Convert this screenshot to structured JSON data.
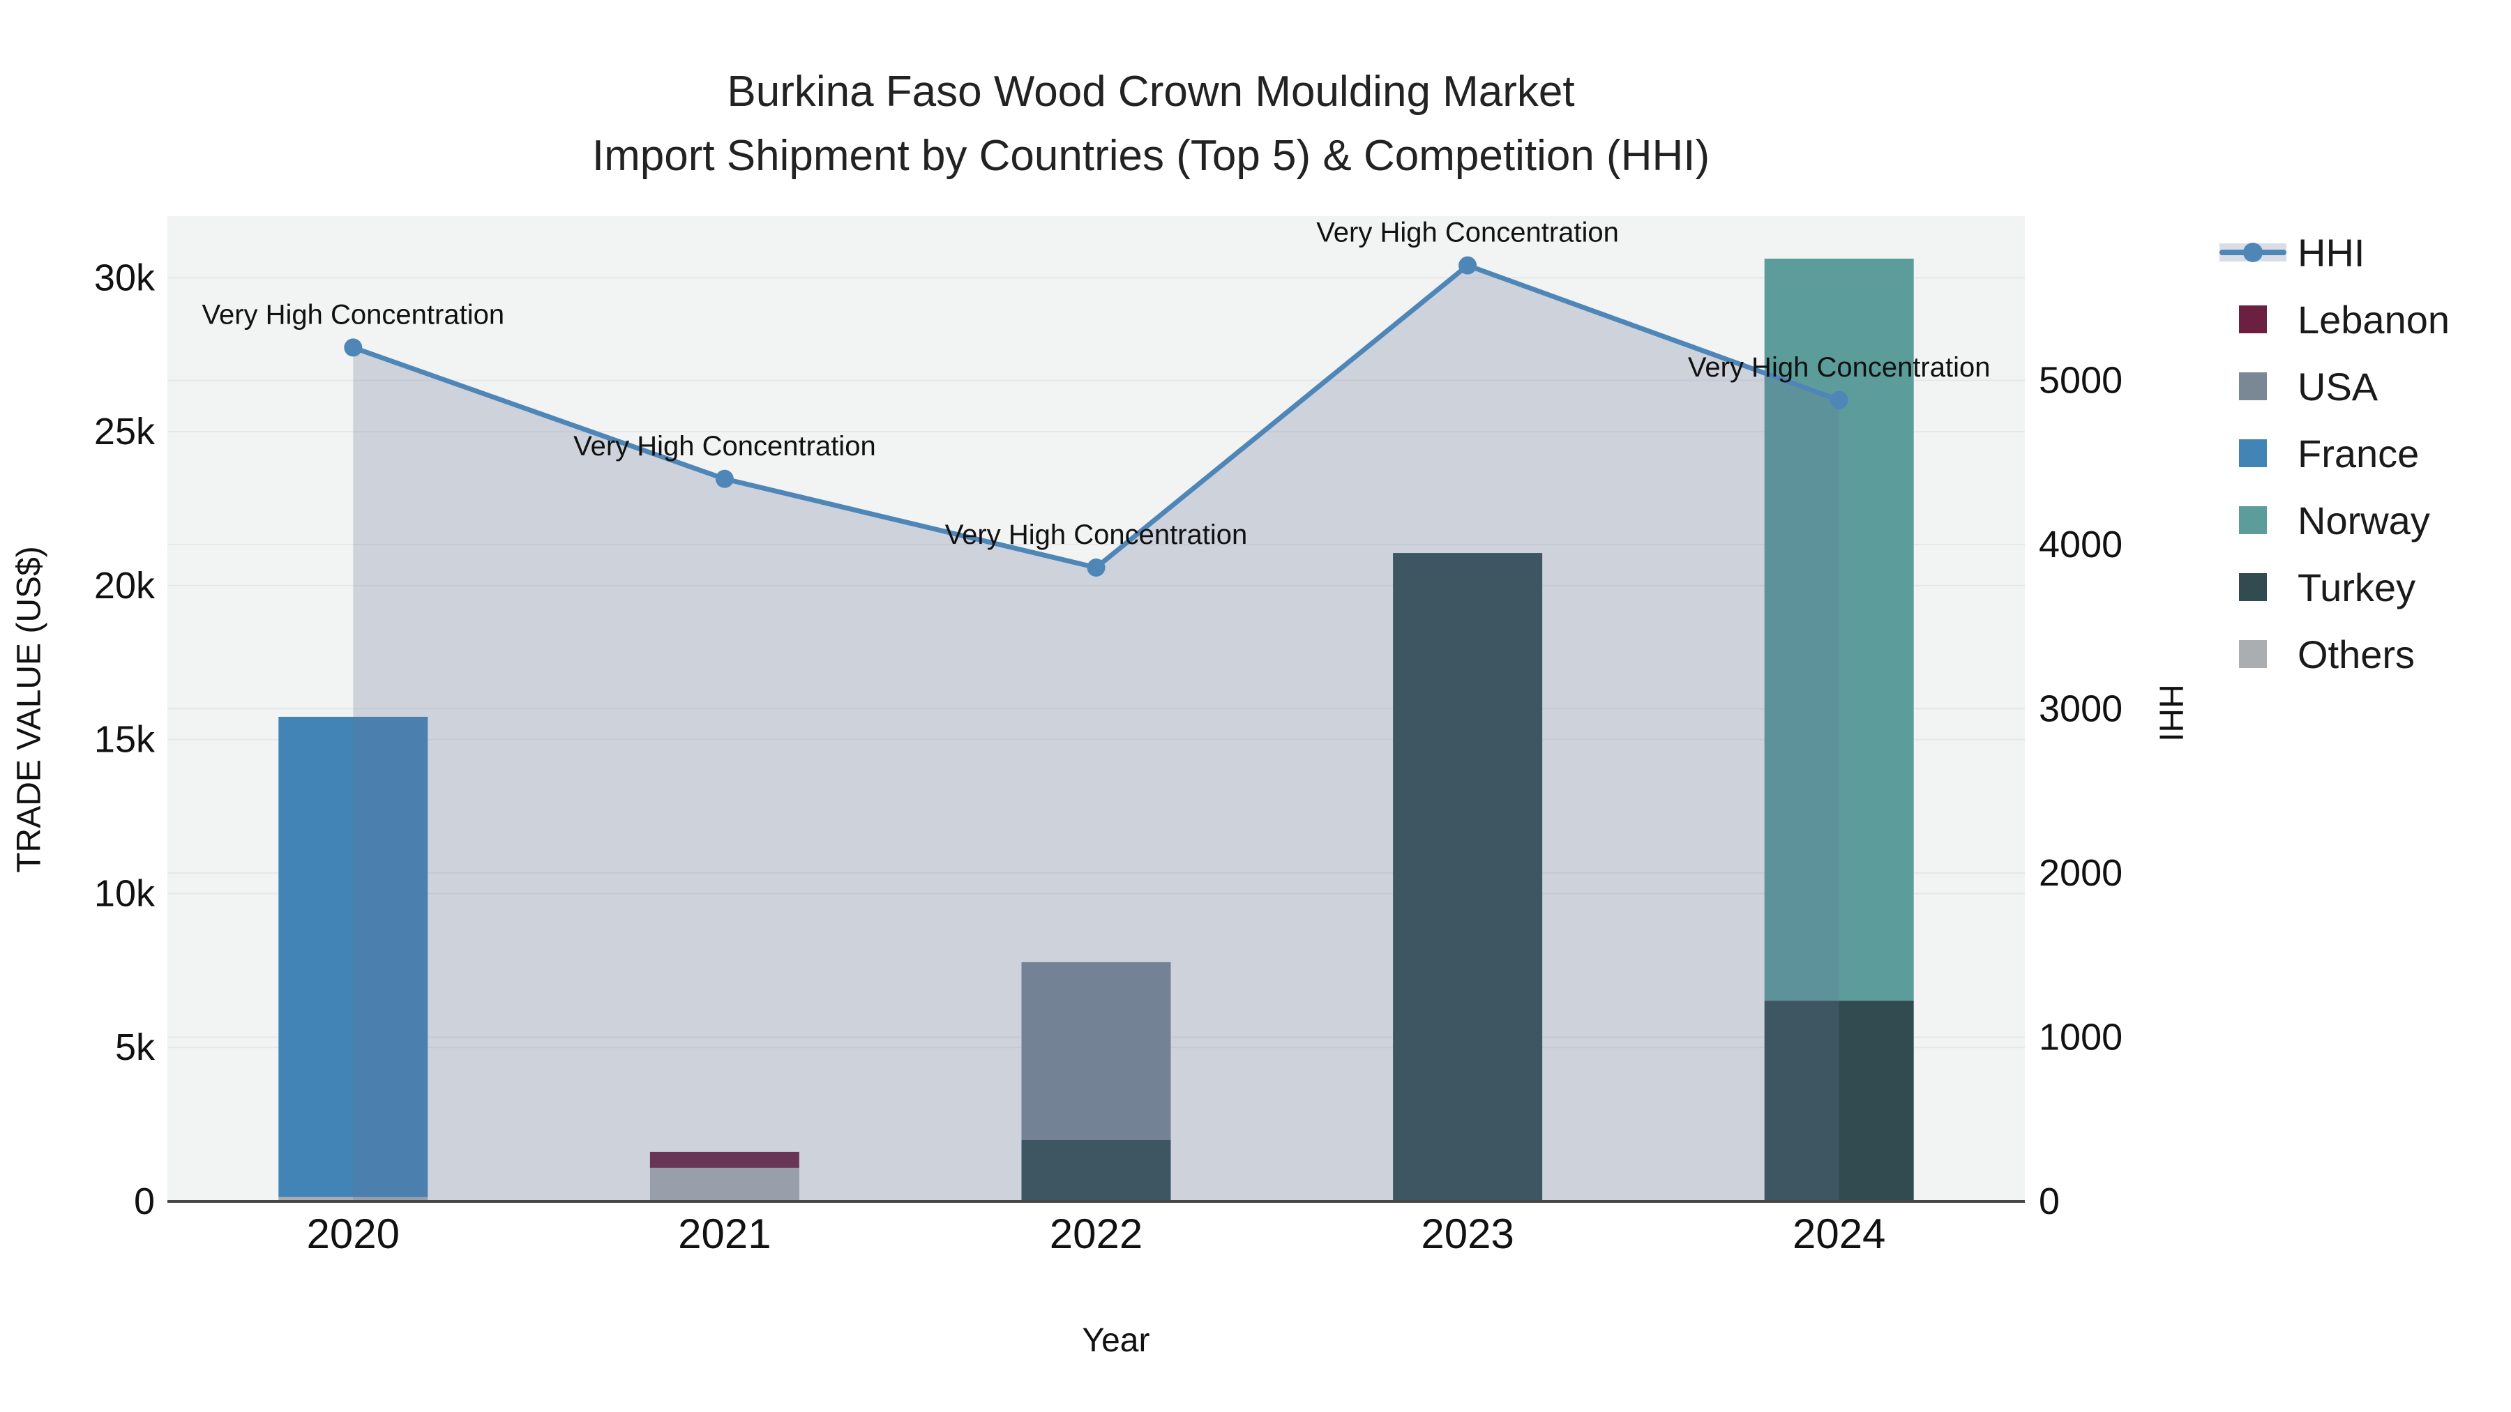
{
  "title": {
    "line1": "Burkina Faso Wood Crown Moulding Market",
    "line2": "Import Shipment by Countries (Top 5) & Competition (HHI)"
  },
  "axes": {
    "x": {
      "title": "Year",
      "categories": [
        "2020",
        "2021",
        "2022",
        "2023",
        "2024"
      ]
    },
    "y_left": {
      "title": "TRADE VALUE (US$)",
      "max": 32000,
      "ticks": [
        {
          "value": 0,
          "label": "0"
        },
        {
          "value": 5000,
          "label": "5k"
        },
        {
          "value": 10000,
          "label": "10k"
        },
        {
          "value": 15000,
          "label": "15k"
        },
        {
          "value": 20000,
          "label": "20k"
        },
        {
          "value": 25000,
          "label": "25k"
        },
        {
          "value": 30000,
          "label": "30k"
        }
      ]
    },
    "y_right": {
      "title": "HHI",
      "max": 6000,
      "ticks": [
        {
          "value": 0,
          "label": "0"
        },
        {
          "value": 1000,
          "label": "1000"
        },
        {
          "value": 2000,
          "label": "2000"
        },
        {
          "value": 3000,
          "label": "3000"
        },
        {
          "value": 4000,
          "label": "4000"
        },
        {
          "value": 5000,
          "label": "5000"
        }
      ]
    }
  },
  "legend": [
    {
      "label": "HHI",
      "type": "line",
      "color": "#4e86b8"
    },
    {
      "label": "Lebanon",
      "type": "square",
      "color": "#6b1f41"
    },
    {
      "label": "USA",
      "type": "square",
      "color": "#7a8795"
    },
    {
      "label": "France",
      "type": "square",
      "color": "#4384b6"
    },
    {
      "label": "Norway",
      "type": "square",
      "color": "#5c9d9b"
    },
    {
      "label": "Turkey",
      "type": "square",
      "color": "#314b50"
    },
    {
      "label": "Others",
      "type": "square",
      "color": "#abaeb1"
    }
  ],
  "chart_data": {
    "type": "combo-stacked-bar-line",
    "categories": [
      "2020",
      "2021",
      "2022",
      "2023",
      "2024"
    ],
    "bar_unit": "US$",
    "bar_series_bottom_to_top": [
      {
        "name": "Others",
        "color": "#abaeb1",
        "values": [
          140,
          1090,
          0,
          0,
          0
        ]
      },
      {
        "name": "Turkey",
        "color": "#314b50",
        "values": [
          0,
          0,
          2000,
          21060,
          6520
        ]
      },
      {
        "name": "Norway",
        "color": "#5c9d9b",
        "values": [
          0,
          0,
          0,
          0,
          24100
        ]
      },
      {
        "name": "France",
        "color": "#4384b6",
        "values": [
          15600,
          0,
          0,
          0,
          0
        ]
      },
      {
        "name": "USA",
        "color": "#7a8795",
        "values": [
          0,
          0,
          5770,
          0,
          0
        ]
      },
      {
        "name": "Lebanon",
        "color": "#6b1f41",
        "values": [
          0,
          520,
          0,
          0,
          0
        ]
      }
    ],
    "line_series": {
      "name": "HHI",
      "color": "#4e86b8",
      "fill_color": "#647497",
      "fill_opacity": 0.26,
      "values": [
        5200,
        4400,
        3860,
        5700,
        4880
      ]
    },
    "annotations": [
      "Very High Concentration",
      "Very High Concentration",
      "Very High Concentration",
      "Very High Concentration",
      "Very High Concentration"
    ],
    "plot_background": "#f2f3f3",
    "gridline_color": "#e6e8e8",
    "axis_line_color": "#474747",
    "ylim_left": [
      0,
      32000
    ],
    "ylim_right": [
      0,
      6000
    ],
    "legend_position": "right"
  }
}
